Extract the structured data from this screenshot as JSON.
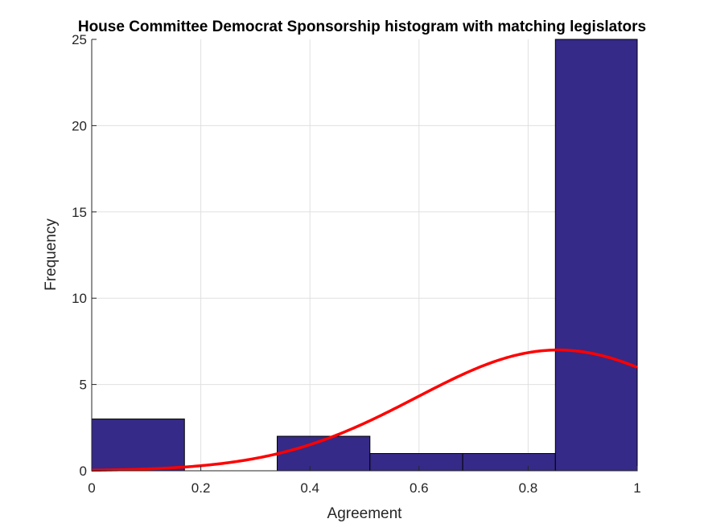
{
  "chart_data": {
    "type": "bar",
    "title": "House Committee Democrat Sponsorship histogram with matching legislators",
    "xlabel": "Agreement",
    "ylabel": "Frequency",
    "xlim": [
      0,
      1
    ],
    "ylim": [
      0,
      25
    ],
    "grid": true,
    "x_ticks": [
      {
        "value": 0,
        "label": "0"
      },
      {
        "value": 0.2,
        "label": "0.2"
      },
      {
        "value": 0.4,
        "label": "0.4"
      },
      {
        "value": 0.6,
        "label": "0.6"
      },
      {
        "value": 0.8,
        "label": "0.8"
      },
      {
        "value": 1,
        "label": "1"
      }
    ],
    "y_ticks": [
      {
        "value": 0,
        "label": "0"
      },
      {
        "value": 5,
        "label": "5"
      },
      {
        "value": 10,
        "label": "10"
      },
      {
        "value": 15,
        "label": "15"
      },
      {
        "value": 20,
        "label": "20"
      },
      {
        "value": 25,
        "label": "25"
      }
    ],
    "bins": [
      {
        "start": 0.0,
        "end": 0.17,
        "count": 3
      },
      {
        "start": 0.17,
        "end": 0.34,
        "count": 0
      },
      {
        "start": 0.34,
        "end": 0.51,
        "count": 2
      },
      {
        "start": 0.51,
        "end": 0.68,
        "count": 1
      },
      {
        "start": 0.68,
        "end": 0.85,
        "count": 1
      },
      {
        "start": 0.85,
        "end": 1.0,
        "count": 25
      }
    ],
    "fit_curve": {
      "type": "normal",
      "peak": 7.0,
      "mean": 0.855,
      "sigma": 0.26
    },
    "colors": {
      "bar_fill": "#352a87",
      "bar_edge": "#000000",
      "fit_line": "#ff0000",
      "grid": "#e0e0e0",
      "axis": "#262626"
    }
  }
}
